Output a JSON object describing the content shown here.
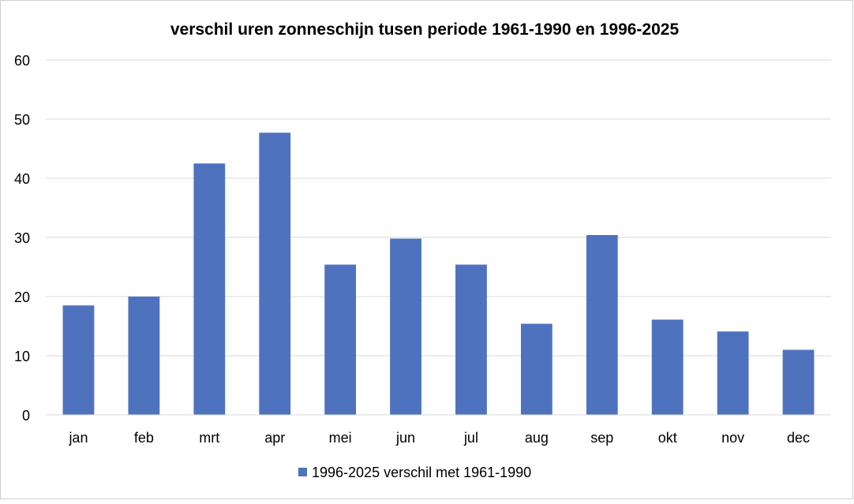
{
  "chart_data": {
    "type": "bar",
    "title": "verschil uren zonneschijn tusen periode 1961-1990 en 1996-2025",
    "xlabel": "",
    "ylabel": "",
    "ylim": [
      0,
      60
    ],
    "yticks": [
      "0",
      "10",
      "20",
      "30",
      "40",
      "50",
      "60"
    ],
    "grid": true,
    "legend_position": "bottom",
    "categories": [
      "jan",
      "feb",
      "mrt",
      "apr",
      "mei",
      "jun",
      "jul",
      "aug",
      "sep",
      "okt",
      "nov",
      "dec"
    ],
    "series": [
      {
        "name": "1996-2025 verschil met 1961-1990",
        "color": "#4f72be",
        "values": [
          18.5,
          20.0,
          42.5,
          47.7,
          25.4,
          29.8,
          25.4,
          15.4,
          30.4,
          16.1,
          14.1,
          11.0
        ]
      }
    ]
  }
}
